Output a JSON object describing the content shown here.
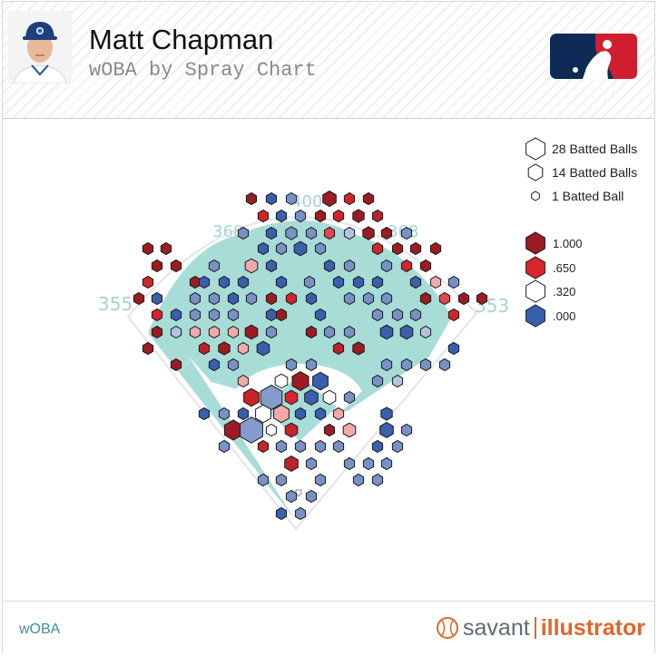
{
  "header": {
    "player_name": "Matt Chapman",
    "subtitle": "wOBA by Spray Chart"
  },
  "footer": {
    "metric_label": "wOBA",
    "brand_savant": "savant",
    "brand_illustrator": "illustrator"
  },
  "chart_data": {
    "type": "heatmap",
    "title": "wOBA by Spray Chart",
    "field_distances": {
      "left_line": "355",
      "left_center": "368",
      "center": "400",
      "right_center": "368",
      "right_line": "353"
    },
    "size_legend": [
      {
        "label": "28 Batted Balls",
        "count": 28
      },
      {
        "label": "14 Batted Balls",
        "count": 14
      },
      {
        "label": "1 Batted Ball",
        "count": 1
      }
    ],
    "color_legend": [
      {
        "label": "1.000",
        "value": 1.0,
        "color": "#9b1c22"
      },
      {
        "label": ".650",
        "value": 0.65,
        "color": "#d8262d"
      },
      {
        "label": ".320",
        "value": 0.32,
        "color": "#ffffff"
      },
      {
        "label": ".000",
        "value": 0.0,
        "color": "#3a5fae"
      }
    ],
    "colors": {
      "field_fill": "#a8ddd7",
      "field_lines": "#e3e3e3",
      "distance_text": "#a4d4d0",
      "hex_stroke": "#1a1a1a"
    },
    "bins": [
      [
        274,
        217,
        1,
        1
      ],
      [
        296,
        217,
        1,
        0
      ],
      [
        318,
        217,
        1,
        0.1
      ],
      [
        360,
        217,
        1.3,
        1
      ],
      [
        382,
        217,
        1,
        0.7
      ],
      [
        403,
        217,
        1,
        1
      ],
      [
        287,
        236,
        1,
        0.7
      ],
      [
        307,
        236,
        1,
        0
      ],
      [
        328,
        236,
        1,
        0.1
      ],
      [
        350,
        236,
        1,
        1
      ],
      [
        370,
        236,
        1,
        0.7
      ],
      [
        392,
        236,
        1.1,
        1
      ],
      [
        413,
        236,
        1,
        0.8
      ],
      [
        265,
        255,
        1,
        0.1
      ],
      [
        296,
        255,
        1,
        0
      ],
      [
        318,
        255,
        1.1,
        0.1
      ],
      [
        340,
        255,
        1,
        0.1
      ],
      [
        360,
        255,
        1,
        0.6
      ],
      [
        382,
        255,
        1,
        0.2
      ],
      [
        403,
        255,
        1.1,
        1
      ],
      [
        423,
        255,
        1,
        1
      ],
      [
        445,
        255,
        1,
        0.1
      ],
      [
        160,
        272,
        1,
        1
      ],
      [
        180,
        272,
        1,
        1
      ],
      [
        287,
        272,
        1,
        0
      ],
      [
        307,
        272,
        1,
        0.1
      ],
      [
        328,
        272,
        1.2,
        0
      ],
      [
        350,
        272,
        1,
        0.1
      ],
      [
        413,
        272,
        1,
        0.7
      ],
      [
        435,
        272,
        1,
        1
      ],
      [
        455,
        272,
        1,
        1
      ],
      [
        477,
        272,
        1,
        1
      ],
      [
        170,
        291,
        1,
        1
      ],
      [
        191,
        291,
        1,
        1
      ],
      [
        233,
        291,
        1,
        0.1
      ],
      [
        274,
        291,
        1.2,
        0.45
      ],
      [
        296,
        291,
        1,
        0
      ],
      [
        360,
        291,
        1,
        0
      ],
      [
        382,
        291,
        1,
        0.1
      ],
      [
        423,
        291,
        1,
        0.1
      ],
      [
        445,
        291,
        1,
        0.7
      ],
      [
        466,
        291,
        1,
        1
      ],
      [
        160,
        309,
        1,
        0.7
      ],
      [
        212,
        309,
        1,
        1
      ],
      [
        222,
        309,
        1,
        0
      ],
      [
        244,
        309,
        1,
        0
      ],
      [
        265,
        309,
        1,
        0
      ],
      [
        307,
        309,
        1,
        0
      ],
      [
        338,
        309,
        1,
        0.1
      ],
      [
        370,
        309,
        1,
        0
      ],
      [
        392,
        309,
        1,
        0
      ],
      [
        413,
        309,
        1,
        0
      ],
      [
        455,
        309,
        1,
        0
      ],
      [
        477,
        309,
        1,
        0.45
      ],
      [
        497,
        309,
        1,
        0.1
      ],
      [
        150,
        327,
        1,
        1
      ],
      [
        170,
        327,
        1,
        0
      ],
      [
        212,
        327,
        1,
        0.1
      ],
      [
        233,
        327,
        1,
        0.1
      ],
      [
        254,
        327,
        1,
        0
      ],
      [
        274,
        327,
        1,
        0.1
      ],
      [
        296,
        327,
        1,
        1
      ],
      [
        318,
        327,
        1,
        0.7
      ],
      [
        340,
        327,
        1,
        0
      ],
      [
        382,
        327,
        1,
        0.1
      ],
      [
        403,
        327,
        1,
        0.1
      ],
      [
        423,
        327,
        1,
        0.1
      ],
      [
        466,
        327,
        1,
        1
      ],
      [
        487,
        327,
        1,
        0.6
      ],
      [
        508,
        327,
        1,
        1
      ],
      [
        528,
        327,
        1,
        1
      ],
      [
        170,
        345,
        1,
        0.7
      ],
      [
        191,
        345,
        1,
        0
      ],
      [
        212,
        345,
        1,
        0.1
      ],
      [
        233,
        345,
        1,
        0.1
      ],
      [
        254,
        345,
        1,
        0.1
      ],
      [
        296,
        345,
        1,
        0
      ],
      [
        307,
        345,
        1,
        1
      ],
      [
        350,
        345,
        1,
        0
      ],
      [
        413,
        345,
        1,
        0.1
      ],
      [
        435,
        345,
        1,
        0.1
      ],
      [
        455,
        345,
        1,
        0.1
      ],
      [
        497,
        345,
        1,
        0.7
      ],
      [
        170,
        364,
        1,
        1
      ],
      [
        191,
        364,
        1,
        0.2
      ],
      [
        212,
        364,
        1,
        0.45
      ],
      [
        233,
        364,
        1,
        0.45
      ],
      [
        254,
        364,
        1,
        0.45
      ],
      [
        274,
        364,
        1.2,
        1
      ],
      [
        296,
        364,
        1,
        0.1
      ],
      [
        340,
        364,
        1,
        1
      ],
      [
        360,
        364,
        1,
        0.1
      ],
      [
        382,
        364,
        1,
        0.1
      ],
      [
        423,
        364,
        1.2,
        0
      ],
      [
        445,
        364,
        1.2,
        0
      ],
      [
        466,
        364,
        1,
        0.2
      ],
      [
        160,
        382,
        1,
        1
      ],
      [
        222,
        382,
        1,
        0.8
      ],
      [
        244,
        382,
        1.1,
        1
      ],
      [
        265,
        382,
        1,
        0.45
      ],
      [
        287,
        382,
        1.2,
        0
      ],
      [
        370,
        382,
        1,
        0.8
      ],
      [
        392,
        382,
        1.1,
        1
      ],
      [
        497,
        382,
        1,
        0
      ],
      [
        191,
        400,
        1,
        1
      ],
      [
        233,
        400,
        1,
        0
      ],
      [
        254,
        400,
        1,
        0.1
      ],
      [
        318,
        400,
        1,
        0.1
      ],
      [
        340,
        400,
        1,
        0.1
      ],
      [
        423,
        400,
        1,
        0.1
      ],
      [
        445,
        400,
        1,
        0.1
      ],
      [
        466,
        400,
        1,
        0.1
      ],
      [
        487,
        400,
        1,
        0.1
      ],
      [
        265,
        418,
        1,
        0.45
      ],
      [
        307,
        418,
        1.2,
        0.32
      ],
      [
        328,
        418,
        1.6,
        1
      ],
      [
        350,
        418,
        1.5,
        0
      ],
      [
        413,
        418,
        1,
        0.1
      ],
      [
        435,
        418,
        1,
        0.2
      ],
      [
        274,
        436,
        1.5,
        0.75
      ],
      [
        296,
        436,
        2.1,
        0.12
      ],
      [
        318,
        436,
        1.2,
        0.65
      ],
      [
        340,
        436,
        1.3,
        0
      ],
      [
        360,
        436,
        1.2,
        0.32
      ],
      [
        382,
        436,
        1,
        0.1
      ],
      [
        222,
        454,
        1,
        0
      ],
      [
        244,
        454,
        1,
        0.1
      ],
      [
        265,
        454,
        1,
        0
      ],
      [
        287,
        454,
        1.5,
        0.32
      ],
      [
        307,
        454,
        1.5,
        0.45
      ],
      [
        328,
        454,
        1,
        0
      ],
      [
        350,
        454,
        1,
        0
      ],
      [
        370,
        454,
        1,
        0.45
      ],
      [
        423,
        454,
        1.1,
        0
      ],
      [
        254,
        472,
        1.7,
        1
      ],
      [
        274,
        472,
        2.2,
        0.12
      ],
      [
        296,
        472,
        1,
        0.32
      ],
      [
        318,
        472,
        1.2,
        0.75
      ],
      [
        360,
        472,
        1,
        1
      ],
      [
        382,
        472,
        1.2,
        0.45
      ],
      [
        423,
        472,
        1.3,
        0
      ],
      [
        445,
        472,
        1,
        0.1
      ],
      [
        244,
        490,
        1,
        0.1
      ],
      [
        287,
        490,
        1,
        0.75
      ],
      [
        307,
        490,
        1,
        0.1
      ],
      [
        328,
        490,
        1,
        0.1
      ],
      [
        350,
        490,
        1,
        0.1
      ],
      [
        370,
        490,
        1,
        0.1
      ],
      [
        413,
        490,
        1,
        0
      ],
      [
        435,
        490,
        1,
        0.1
      ],
      [
        318,
        509,
        1.3,
        0.8
      ],
      [
        340,
        509,
        1,
        0.1
      ],
      [
        382,
        509,
        1,
        0.1
      ],
      [
        403,
        509,
        1,
        0.1
      ],
      [
        423,
        509,
        1,
        0.1
      ],
      [
        287,
        527,
        1,
        0.1
      ],
      [
        307,
        527,
        1,
        0.1
      ],
      [
        350,
        527,
        1,
        0.1
      ],
      [
        392,
        527,
        1,
        0.1
      ],
      [
        413,
        527,
        1,
        0.1
      ],
      [
        318,
        545,
        1,
        0.1
      ],
      [
        340,
        545,
        1,
        0.1
      ],
      [
        307,
        564,
        1,
        0
      ],
      [
        328,
        564,
        1,
        0.1
      ]
    ]
  }
}
